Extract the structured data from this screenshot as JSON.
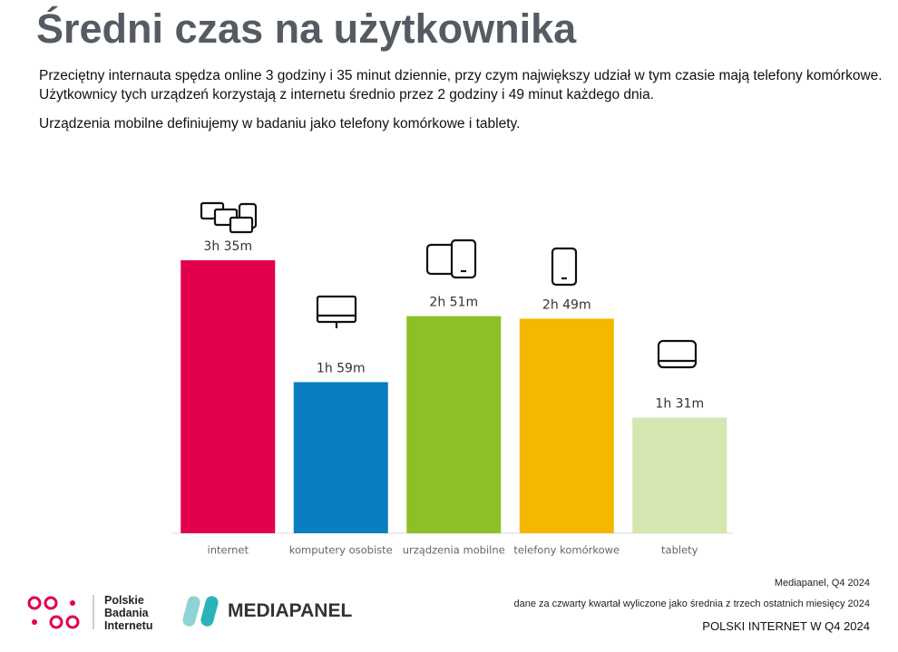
{
  "chart_data": {
    "type": "bar",
    "title": "Średni czas na użytkownika",
    "description": [
      "Przeciętny internauta spędza online 3 godziny i 35 minut dziennie, przy czym największy udział w tym czasie mają telefony komórkowe. Użytkownicy tych urządzeń korzystają z internetu średnio przez 2 godziny i 49 minut każdego dnia.",
      "Urządzenia mobilne definiujemy w badaniu jako telefony komórkowe i tablety."
    ],
    "categories": [
      "internet",
      "komputery osobiste",
      "urządzenia mobilne",
      "telefony komórkowe",
      "tablety"
    ],
    "values": [
      215,
      119,
      171,
      169,
      91
    ],
    "value_labels": [
      "3h 35m",
      "1h 59m",
      "2h 51m",
      "2h 49m",
      "1h 31m"
    ],
    "colors": [
      "#e2004f",
      "#0a7dc3",
      "#8dbf27",
      "#f4b800",
      "#d6e6b1"
    ]
  },
  "footer": {
    "logo_pbi": [
      "Polskie",
      "Badania",
      "Internetu"
    ],
    "logo_mediapanel": "MEDIAPANEL",
    "source": "Mediapanel, Q4 2024",
    "note": "dane za czwarty kwartał wyliczone jako średnia z trzech ostatnich miesięcy 2024",
    "report": "POLSKI INTERNET W Q4 2024"
  }
}
